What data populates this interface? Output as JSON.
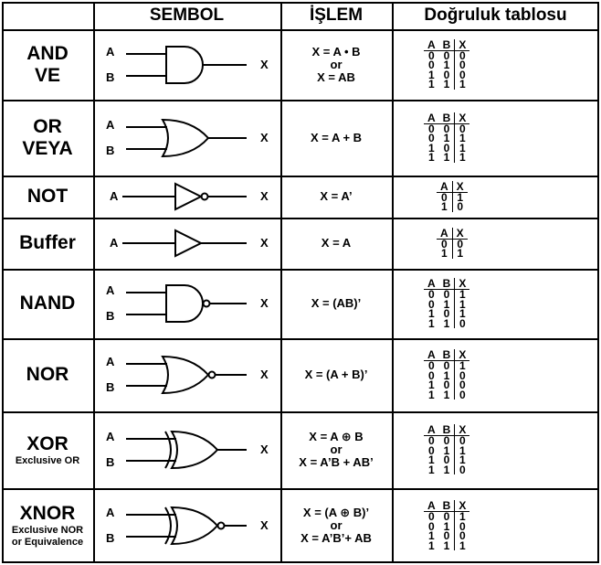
{
  "headers": {
    "symbol": "SEMBOL",
    "operation": "İŞLEM",
    "truth_table": "Doğruluk tablosu"
  },
  "gates": [
    {
      "id": "and",
      "name": [
        "AND",
        "VE"
      ],
      "subtitle": [],
      "inputs": [
        "A",
        "B"
      ],
      "output": "X",
      "expr": [
        "X = A • B",
        "or",
        "X = AB"
      ],
      "tt_head": [
        "A",
        "B",
        "X"
      ],
      "tt_rows": [
        [
          "0",
          "0",
          "0"
        ],
        [
          "0",
          "1",
          "0"
        ],
        [
          "1",
          "0",
          "0"
        ],
        [
          "1",
          "1",
          "1"
        ]
      ]
    },
    {
      "id": "or",
      "name": [
        "OR",
        "VEYA"
      ],
      "subtitle": [],
      "inputs": [
        "A",
        "B"
      ],
      "output": "X",
      "expr": [
        "X = A + B"
      ],
      "tt_head": [
        "A",
        "B",
        "X"
      ],
      "tt_rows": [
        [
          "0",
          "0",
          "0"
        ],
        [
          "0",
          "1",
          "1"
        ],
        [
          "1",
          "0",
          "1"
        ],
        [
          "1",
          "1",
          "1"
        ]
      ]
    },
    {
      "id": "not",
      "name": [
        "NOT"
      ],
      "subtitle": [],
      "inputs": [
        "A"
      ],
      "output": "X",
      "expr": [
        "X = A’"
      ],
      "tt_head": [
        "A",
        "X"
      ],
      "tt_rows": [
        [
          "0",
          "1"
        ],
        [
          "1",
          "0"
        ]
      ]
    },
    {
      "id": "buffer",
      "name": [
        "Buffer"
      ],
      "subtitle": [],
      "inputs": [
        "A"
      ],
      "output": "X",
      "expr": [
        "X = A"
      ],
      "tt_head": [
        "A",
        "X"
      ],
      "tt_rows": [
        [
          "0",
          "0"
        ],
        [
          "1",
          "1"
        ]
      ]
    },
    {
      "id": "nand",
      "name": [
        "NAND"
      ],
      "subtitle": [],
      "inputs": [
        "A",
        "B"
      ],
      "output": "X",
      "expr": [
        "X = (AB)’"
      ],
      "tt_head": [
        "A",
        "B",
        "X"
      ],
      "tt_rows": [
        [
          "0",
          "0",
          "1"
        ],
        [
          "0",
          "1",
          "1"
        ],
        [
          "1",
          "0",
          "1"
        ],
        [
          "1",
          "1",
          "0"
        ]
      ]
    },
    {
      "id": "nor",
      "name": [
        "NOR"
      ],
      "subtitle": [],
      "inputs": [
        "A",
        "B"
      ],
      "output": "X",
      "expr": [
        "X = (A + B)’"
      ],
      "tt_head": [
        "A",
        "B",
        "X"
      ],
      "tt_rows": [
        [
          "0",
          "0",
          "1"
        ],
        [
          "0",
          "1",
          "0"
        ],
        [
          "1",
          "0",
          "0"
        ],
        [
          "1",
          "1",
          "0"
        ]
      ]
    },
    {
      "id": "xor",
      "name": [
        "XOR"
      ],
      "subtitle": [
        "Exclusive OR"
      ],
      "inputs": [
        "A",
        "B"
      ],
      "output": "X",
      "expr": [
        "X = A ⊕ B",
        "or",
        "X = A’B + AB’"
      ],
      "tt_head": [
        "A",
        "B",
        "X"
      ],
      "tt_rows": [
        [
          "0",
          "0",
          "0"
        ],
        [
          "0",
          "1",
          "1"
        ],
        [
          "1",
          "0",
          "1"
        ],
        [
          "1",
          "1",
          "0"
        ]
      ]
    },
    {
      "id": "xnor",
      "name": [
        "XNOR"
      ],
      "subtitle": [
        "Exclusive NOR",
        "or Equivalence"
      ],
      "inputs": [
        "A",
        "B"
      ],
      "output": "X",
      "expr": [
        "X = (A ⊕ B)’",
        "or",
        "X = A’B’+ AB"
      ],
      "tt_head": [
        "A",
        "B",
        "X"
      ],
      "tt_rows": [
        [
          "0",
          "0",
          "1"
        ],
        [
          "0",
          "1",
          "0"
        ],
        [
          "1",
          "0",
          "0"
        ],
        [
          "1",
          "1",
          "1"
        ]
      ]
    }
  ]
}
